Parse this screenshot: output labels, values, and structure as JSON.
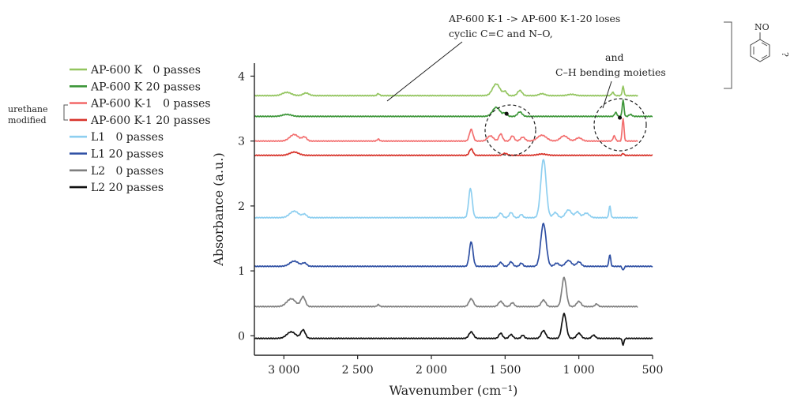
{
  "chart_data": {
    "type": "line",
    "xlabel": "Wavenumber (cm⁻¹)",
    "ylabel": "Absorbance (a.u.)",
    "xlim": [
      3200,
      500
    ],
    "ylim": [
      -0.3,
      4.2
    ],
    "x_reversed": true,
    "x_ticks": [
      3000,
      2500,
      2000,
      1500,
      1000,
      500
    ],
    "x_tick_labels": [
      "3 000",
      "2 500",
      "2 000",
      "1 500",
      "1 000",
      "500"
    ],
    "y_ticks": [
      0,
      1,
      2,
      3,
      4
    ],
    "y_tick_labels": [
      "0",
      "1",
      "2",
      "3",
      "4"
    ],
    "grid": false,
    "legend_position": "left",
    "series": [
      {
        "name": "AP-600 K   0 passes",
        "color": "#93c55f",
        "x_start": 3200,
        "x_end": 600,
        "baseline": 3.7,
        "peaks": [
          [
            2980,
            0.05,
            30
          ],
          [
            2850,
            0.04,
            20
          ],
          [
            2360,
            0.03,
            8
          ],
          [
            1560,
            0.18,
            25
          ],
          [
            1500,
            0.06,
            12
          ],
          [
            1400,
            0.08,
            15
          ],
          [
            1250,
            0.03,
            20
          ],
          [
            1050,
            0.02,
            25
          ],
          [
            770,
            0.05,
            8
          ],
          [
            700,
            0.14,
            6
          ]
        ]
      },
      {
        "name": "AP-600 K 20 passes",
        "color": "#3d9639",
        "x_start": 3200,
        "x_end": 500,
        "baseline": 3.38,
        "peaks": [
          [
            2980,
            0.03,
            30
          ],
          [
            1560,
            0.14,
            25
          ],
          [
            1500,
            0.05,
            12
          ],
          [
            1400,
            0.07,
            15
          ],
          [
            750,
            0.06,
            8
          ],
          [
            700,
            0.25,
            6
          ],
          [
            650,
            0.03,
            10
          ]
        ]
      },
      {
        "name": "AP-600 K-1   0 passes",
        "color": "#f36f6f",
        "x_start": 3200,
        "x_end": 600,
        "baseline": 3.0,
        "peaks": [
          [
            2930,
            0.1,
            30
          ],
          [
            2860,
            0.06,
            15
          ],
          [
            2360,
            0.03,
            8
          ],
          [
            1730,
            0.18,
            12
          ],
          [
            1600,
            0.08,
            20
          ],
          [
            1530,
            0.11,
            12
          ],
          [
            1450,
            0.08,
            12
          ],
          [
            1380,
            0.06,
            15
          ],
          [
            1250,
            0.09,
            30
          ],
          [
            1100,
            0.08,
            25
          ],
          [
            1000,
            0.05,
            20
          ],
          [
            760,
            0.08,
            8
          ],
          [
            700,
            0.35,
            6
          ]
        ]
      },
      {
        "name": "AP-600 K-1 20 passes",
        "color": "#d8342b",
        "x_start": 3200,
        "x_end": 500,
        "baseline": 2.78,
        "peaks": [
          [
            2930,
            0.05,
            30
          ],
          [
            1730,
            0.1,
            12
          ],
          [
            1500,
            0.03,
            15
          ],
          [
            1250,
            0.02,
            30
          ],
          [
            700,
            0.03,
            6
          ]
        ]
      },
      {
        "name": "L1   0 passes",
        "color": "#8ecff0",
        "x_start": 3200,
        "x_end": 600,
        "baseline": 1.82,
        "peaks": [
          [
            2930,
            0.1,
            30
          ],
          [
            2860,
            0.05,
            15
          ],
          [
            1735,
            0.45,
            12
          ],
          [
            1530,
            0.07,
            12
          ],
          [
            1460,
            0.08,
            12
          ],
          [
            1390,
            0.05,
            10
          ],
          [
            1240,
            0.9,
            18
          ],
          [
            1160,
            0.08,
            15
          ],
          [
            1070,
            0.12,
            20
          ],
          [
            1010,
            0.09,
            15
          ],
          [
            950,
            0.07,
            20
          ],
          [
            790,
            0.18,
            6
          ]
        ]
      },
      {
        "name": "L1 20 passes",
        "color": "#2e4fa3",
        "x_start": 3200,
        "x_end": 500,
        "baseline": 1.07,
        "peaks": [
          [
            2930,
            0.08,
            30
          ],
          [
            2860,
            0.05,
            15
          ],
          [
            1730,
            0.38,
            12
          ],
          [
            1530,
            0.06,
            12
          ],
          [
            1460,
            0.07,
            12
          ],
          [
            1390,
            0.05,
            10
          ],
          [
            1240,
            0.66,
            18
          ],
          [
            1150,
            0.05,
            15
          ],
          [
            1070,
            0.09,
            20
          ],
          [
            1000,
            0.07,
            15
          ],
          [
            790,
            0.18,
            6
          ],
          [
            700,
            -0.06,
            6
          ]
        ]
      },
      {
        "name": "L2   0 passes",
        "color": "#7f7f7f",
        "x_start": 3200,
        "x_end": 600,
        "baseline": 0.45,
        "peaks": [
          [
            2950,
            0.12,
            30
          ],
          [
            2870,
            0.15,
            15
          ],
          [
            2360,
            0.03,
            8
          ],
          [
            1730,
            0.12,
            15
          ],
          [
            1530,
            0.08,
            15
          ],
          [
            1450,
            0.06,
            12
          ],
          [
            1240,
            0.1,
            15
          ],
          [
            1100,
            0.45,
            15
          ],
          [
            1000,
            0.08,
            15
          ],
          [
            880,
            0.04,
            10
          ]
        ]
      },
      {
        "name": "L2 20 passes",
        "color": "#111111",
        "x_start": 3200,
        "x_end": 500,
        "baseline": -0.04,
        "peaks": [
          [
            2950,
            0.1,
            30
          ],
          [
            2870,
            0.13,
            15
          ],
          [
            1730,
            0.1,
            15
          ],
          [
            1530,
            0.08,
            12
          ],
          [
            1460,
            0.06,
            12
          ],
          [
            1380,
            0.05,
            10
          ],
          [
            1240,
            0.12,
            15
          ],
          [
            1100,
            0.38,
            15
          ],
          [
            1000,
            0.08,
            15
          ],
          [
            900,
            0.05,
            12
          ],
          [
            700,
            -0.1,
            6
          ]
        ]
      }
    ],
    "legend_bracket": {
      "text_line1": "urethane",
      "text_line2": "modified"
    },
    "annotations": [
      {
        "line1": "AP-600 K-1 -> AP-600 K-1-20 loses",
        "line2": "cyclic C=C and N–O,"
      },
      {
        "line1": "and",
        "line2": "C–H bending moieties"
      }
    ],
    "structure": {
      "label": "NO",
      "question_mark": "?"
    }
  }
}
